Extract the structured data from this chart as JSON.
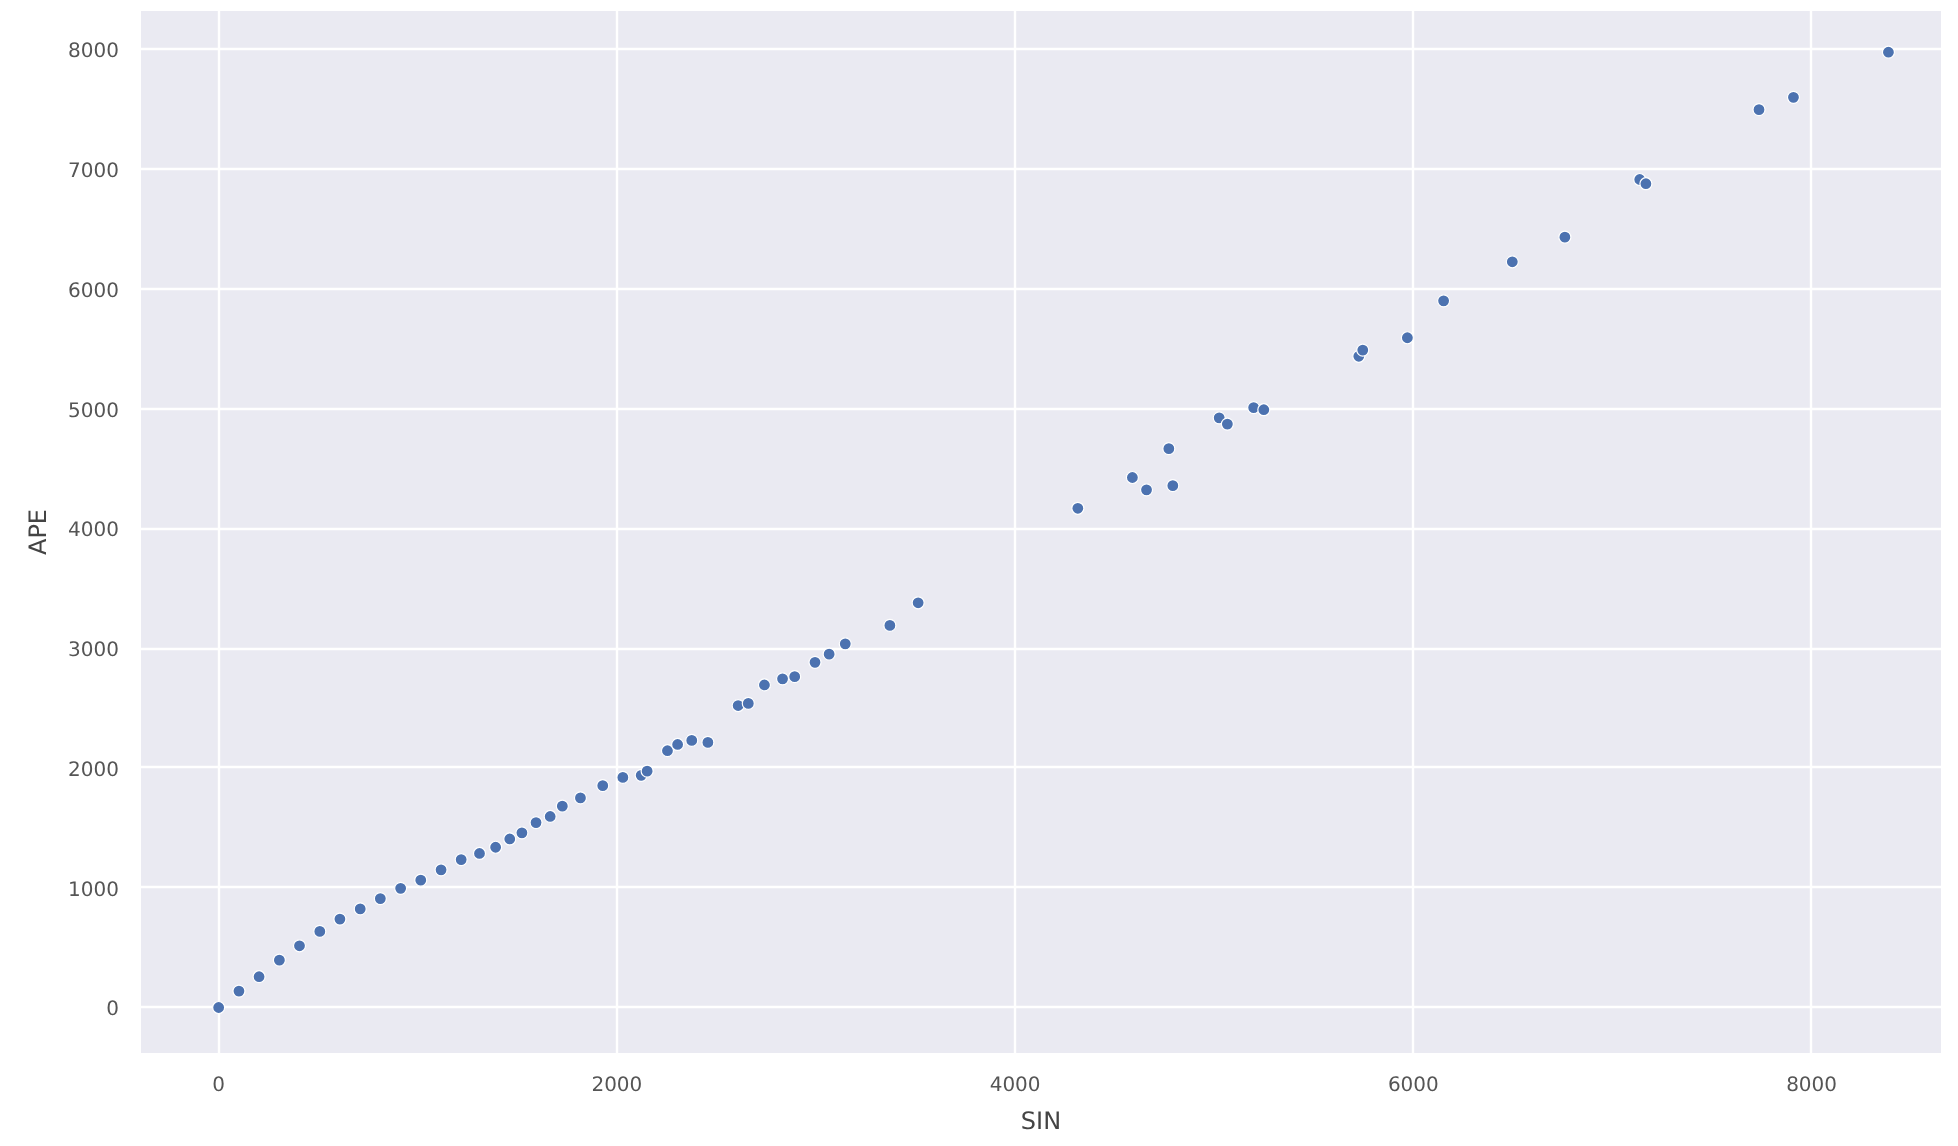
{
  "chart_data": {
    "type": "scatter",
    "xlabel": "SIN",
    "ylabel": "APE",
    "xlim": [
      -390,
      8650
    ],
    "ylim": [
      -380,
      8320
    ],
    "xticks": [
      0,
      2000,
      4000,
      6000,
      8000
    ],
    "yticks": [
      0,
      1000,
      2000,
      3000,
      4000,
      5000,
      6000,
      7000,
      8000
    ],
    "grid": true,
    "marker": "circle",
    "series": [
      {
        "color": "#4c72b0",
        "x": [
          0,
          102,
          203,
          305,
          406,
          508,
          609,
          711,
          812,
          914,
          1015,
          1117,
          1218,
          1310,
          1391,
          1462,
          1523,
          1594,
          1665,
          1726,
          1817,
          1929,
          2030,
          2122,
          2152,
          2254,
          2305,
          2376,
          2457,
          2609,
          2660,
          2741,
          2832,
          2893,
          2995,
          3066,
          3147,
          3371,
          3513,
          4315,
          4589,
          4660,
          4772,
          4792,
          5025,
          5066,
          5198,
          5249,
          5726,
          5746,
          5970,
          6152,
          6497,
          6761,
          7137,
          7168,
          7736,
          7909,
          8386
        ],
        "values": [
          0,
          137,
          257,
          395,
          515,
          635,
          738,
          823,
          909,
          995,
          1063,
          1149,
          1235,
          1286,
          1338,
          1407,
          1458,
          1544,
          1595,
          1681,
          1750,
          1852,
          1921,
          1938,
          1973,
          2144,
          2196,
          2230,
          2213,
          2521,
          2539,
          2693,
          2744,
          2762,
          2882,
          2950,
          3036,
          3190,
          3379,
          4168,
          4425,
          4322,
          4666,
          4357,
          4923,
          4871,
          5009,
          4991,
          5437,
          5489,
          5592,
          5900,
          6226,
          6432,
          6913,
          6878,
          7496,
          7599,
          7976
        ]
      }
    ]
  }
}
